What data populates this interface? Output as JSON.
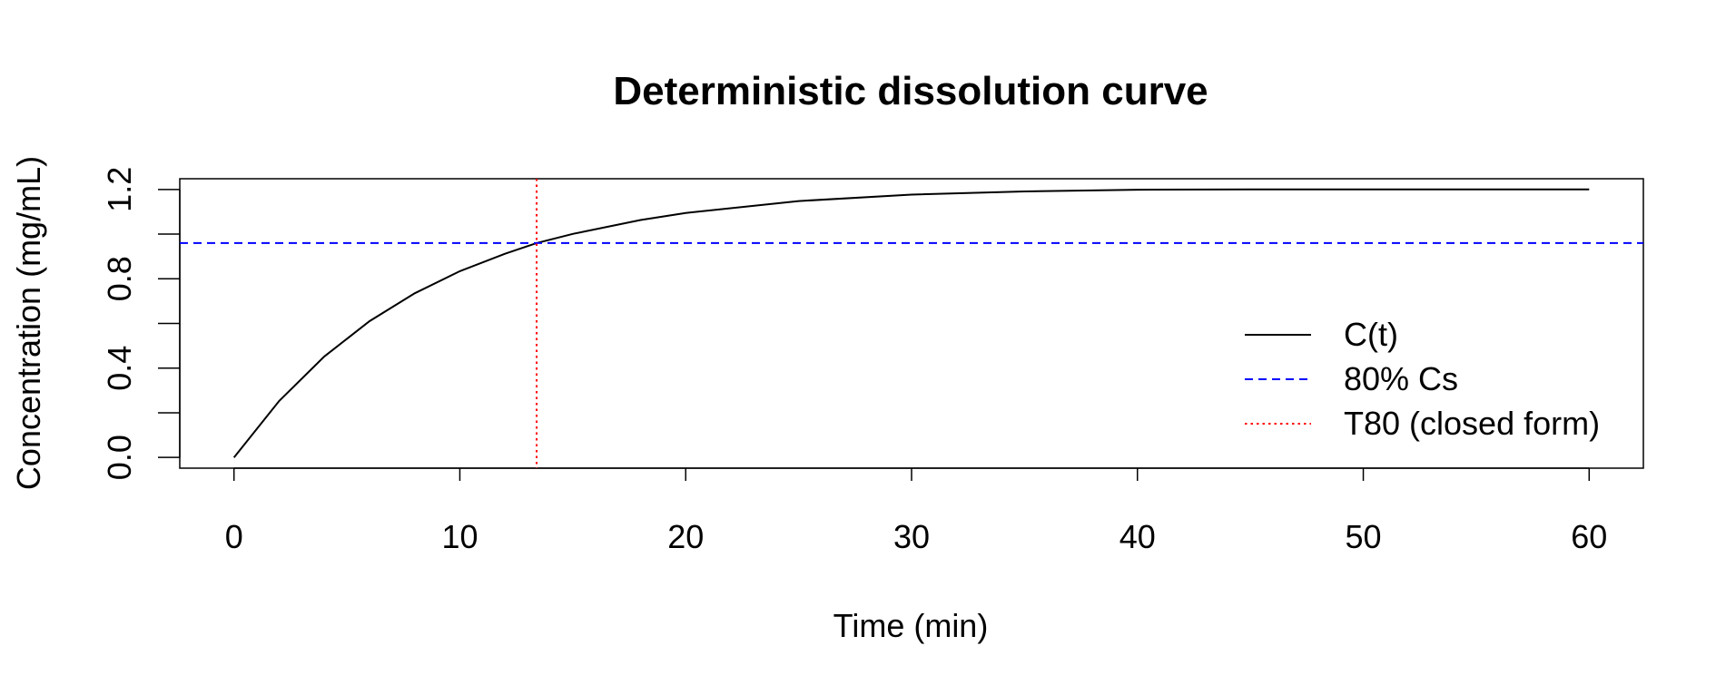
{
  "chart_data": {
    "type": "line",
    "title": "Deterministic dissolution curve",
    "xlabel": "Time (min)",
    "ylabel": "Concentration (mg/mL)",
    "xlim": [
      -2.4,
      62.4
    ],
    "ylim": [
      -0.048,
      1.248
    ],
    "x_ticks": [
      0,
      10,
      20,
      30,
      40,
      50,
      60
    ],
    "x_tick_labels": [
      "0",
      "10",
      "20",
      "30",
      "40",
      "50",
      "60"
    ],
    "y_ticks": [
      0.0,
      0.2,
      0.4,
      0.6,
      0.8,
      1.0,
      1.2
    ],
    "y_tick_labels": [
      "0.0",
      "0.4",
      "0.8",
      "1.2"
    ],
    "y_labeled_ticks": [
      0.0,
      0.4,
      0.8,
      1.2
    ],
    "grid": false,
    "legend_position": "right",
    "series": [
      {
        "name": "C(t)",
        "color": "#000000",
        "style": "solid",
        "x": [
          0,
          2,
          4,
          6,
          8,
          10,
          12,
          13.4,
          15,
          18,
          20,
          25,
          30,
          35,
          40,
          45,
          50,
          55,
          60
        ],
        "y": [
          0.0,
          0.253,
          0.452,
          0.61,
          0.735,
          0.834,
          0.912,
          0.96,
          1.001,
          1.063,
          1.095,
          1.148,
          1.177,
          1.191,
          1.199,
          1.2,
          1.2,
          1.2,
          1.2
        ]
      },
      {
        "name": "80% Cs",
        "color": "#0000ff",
        "style": "dashed",
        "orientation": "horizontal",
        "y": 0.96
      },
      {
        "name": "T80 (closed form)",
        "color": "#ff0000",
        "style": "dotted",
        "orientation": "vertical",
        "x": 13.4
      }
    ]
  }
}
